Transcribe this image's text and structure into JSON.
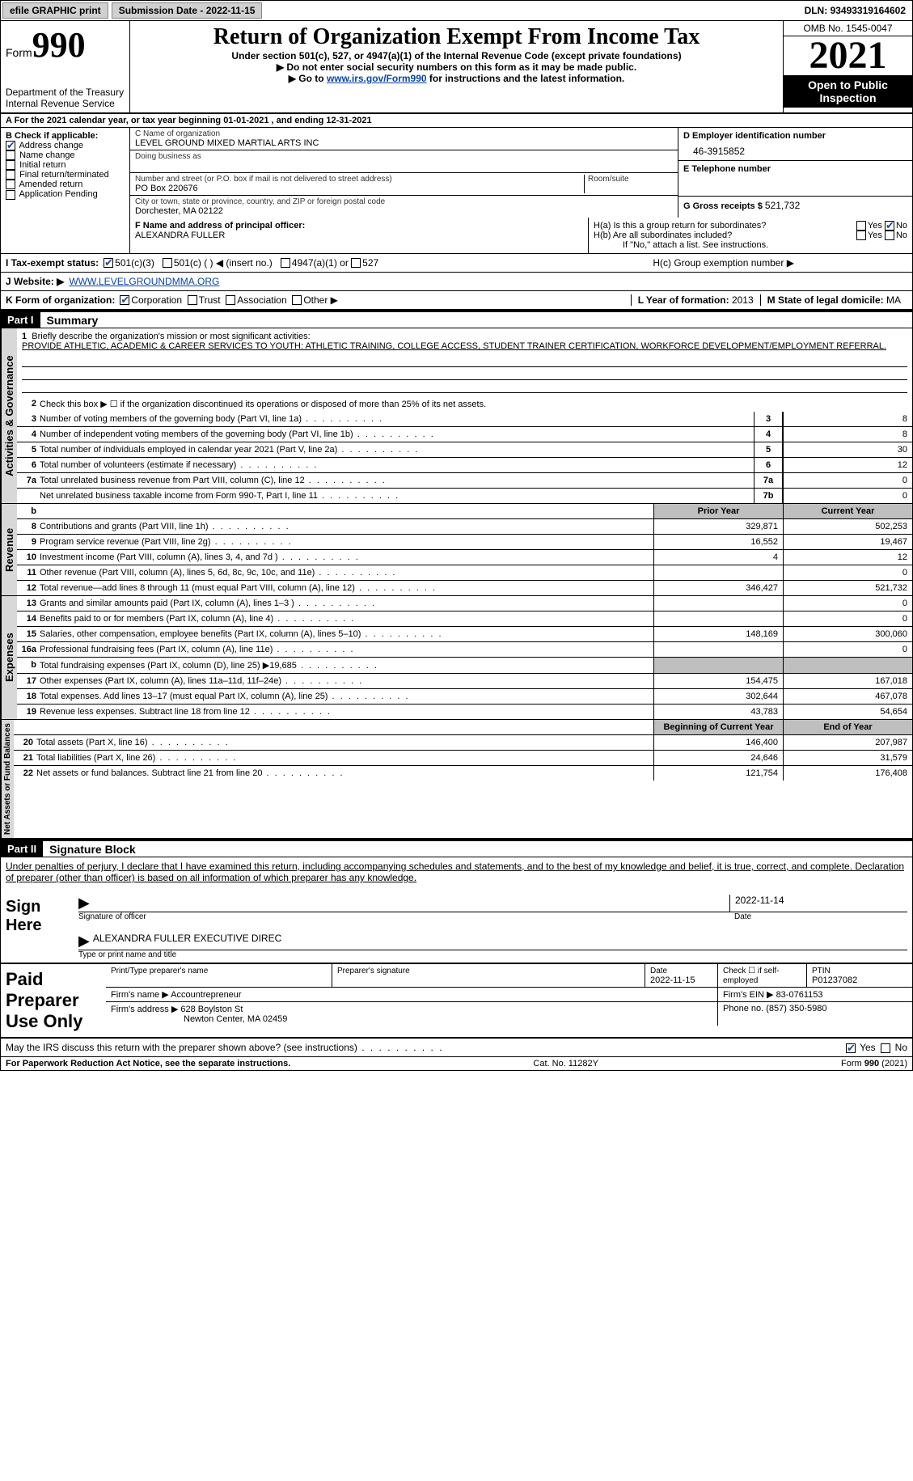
{
  "topbar": {
    "efile": "efile GRAPHIC print",
    "submission_label": "Submission Date - ",
    "submission_date": "2022-11-15",
    "dln_label": "DLN: ",
    "dln": "93493319164602"
  },
  "header": {
    "form_word": "Form",
    "form_no": "990",
    "dept": "Department of the Treasury Internal Revenue Service",
    "title": "Return of Organization Exempt From Income Tax",
    "sub1": "Under section 501(c), 527, or 4947(a)(1) of the Internal Revenue Code (except private foundations)",
    "sub2a": "▶ Do not enter social security numbers on this form as it may be made public.",
    "sub2b_pre": "▶ Go to ",
    "sub2b_link": "www.irs.gov/Form990",
    "sub2b_post": " for instructions and the latest information.",
    "omb": "OMB No. 1545-0047",
    "year": "2021",
    "open": "Open to Public Inspection"
  },
  "A": {
    "line": "A For the 2021 calendar year, or tax year beginning 01-01-2021   , and ending 12-31-2021"
  },
  "B": {
    "label": "B Check if applicable:",
    "items": [
      {
        "label": "Address change",
        "on": true
      },
      {
        "label": "Name change",
        "on": false
      },
      {
        "label": "Initial return",
        "on": false
      },
      {
        "label": "Final return/terminated",
        "on": false
      },
      {
        "label": "Amended return",
        "on": false
      },
      {
        "label": "Application Pending",
        "on": false
      }
    ]
  },
  "C": {
    "name_label": "C Name of organization",
    "name": "LEVEL GROUND MIXED MARTIAL ARTS INC",
    "dba_label": "Doing business as",
    "dba": "",
    "street_label": "Number and street (or P.O. box if mail is not delivered to street address)",
    "street": "PO Box 220676",
    "room_label": "Room/suite",
    "city_label": "City or town, state or province, country, and ZIP or foreign postal code",
    "city": "Dorchester, MA  02122"
  },
  "D": {
    "label": "D Employer identification number",
    "val": "46-3915852"
  },
  "E": {
    "label": "E Telephone number",
    "val": ""
  },
  "G": {
    "label": "G Gross receipts $ ",
    "val": "521,732"
  },
  "F": {
    "label": "F  Name and address of principal officer:",
    "val": "ALEXANDRA FULLER"
  },
  "H": {
    "a": "H(a)  Is this a group return for subordinates?",
    "b": "H(b)  Are all subordinates included?",
    "bnote": "If \"No,\" attach a list. See instructions.",
    "c": "H(c)  Group exemption number ▶",
    "yes": "Yes",
    "no": "No"
  },
  "I": {
    "label": "I   Tax-exempt status:",
    "opts": [
      "501(c)(3)",
      "501(c) (  ) ◀ (insert no.)",
      "4947(a)(1) or",
      "527"
    ]
  },
  "J": {
    "label": "J   Website: ▶ ",
    "val": "WWW.LEVELGROUNDMMA.ORG"
  },
  "K": {
    "label": "K Form of organization:",
    "opts": [
      "Corporation",
      "Trust",
      "Association",
      "Other ▶"
    ]
  },
  "L": {
    "label": "L Year of formation: ",
    "val": "2013"
  },
  "M": {
    "label": "M State of legal domicile: ",
    "val": "MA"
  },
  "part1": {
    "bar": "Part I",
    "title": "Summary"
  },
  "summary": {
    "l1_label": "Briefly describe the organization's mission or most significant activities:",
    "l1_text": "PROVIDE ATHLETIC, ACADEMIC & CAREER SERVICES TO YOUTH: ATHLETIC TRAINING, COLLEGE ACCESS, STUDENT TRAINER CERTIFICATION, WORKFORCE DEVELOPMENT/EMPLOYMENT REFERRAL.",
    "l2": "Check this box ▶ ☐  if the organization discontinued its operations or disposed of more than 25% of its net assets.",
    "rows_ag": [
      {
        "n": "3",
        "t": "Number of voting members of the governing body (Part VI, line 1a)",
        "b": "3",
        "v": "8"
      },
      {
        "n": "4",
        "t": "Number of independent voting members of the governing body (Part VI, line 1b)",
        "b": "4",
        "v": "8"
      },
      {
        "n": "5",
        "t": "Total number of individuals employed in calendar year 2021 (Part V, line 2a)",
        "b": "5",
        "v": "30"
      },
      {
        "n": "6",
        "t": "Total number of volunteers (estimate if necessary)",
        "b": "6",
        "v": "12"
      },
      {
        "n": "7a",
        "t": "Total unrelated business revenue from Part VIII, column (C), line 12",
        "b": "7a",
        "v": "0"
      },
      {
        "n": "",
        "t": "Net unrelated business taxable income from Form 990-T, Part I, line 11",
        "b": "7b",
        "v": "0"
      }
    ],
    "hdr_prior": "Prior Year",
    "hdr_curr": "Current Year",
    "rows_rev": [
      {
        "n": "8",
        "t": "Contributions and grants (Part VIII, line 1h)",
        "p": "329,871",
        "c": "502,253"
      },
      {
        "n": "9",
        "t": "Program service revenue (Part VIII, line 2g)",
        "p": "16,552",
        "c": "19,467"
      },
      {
        "n": "10",
        "t": "Investment income (Part VIII, column (A), lines 3, 4, and 7d )",
        "p": "4",
        "c": "12"
      },
      {
        "n": "11",
        "t": "Other revenue (Part VIII, column (A), lines 5, 6d, 8c, 9c, 10c, and 11e)",
        "p": "",
        "c": "0"
      },
      {
        "n": "12",
        "t": "Total revenue—add lines 8 through 11 (must equal Part VIII, column (A), line 12)",
        "p": "346,427",
        "c": "521,732"
      }
    ],
    "rows_exp": [
      {
        "n": "13",
        "t": "Grants and similar amounts paid (Part IX, column (A), lines 1–3 )",
        "p": "",
        "c": "0"
      },
      {
        "n": "14",
        "t": "Benefits paid to or for members (Part IX, column (A), line 4)",
        "p": "",
        "c": "0"
      },
      {
        "n": "15",
        "t": "Salaries, other compensation, employee benefits (Part IX, column (A), lines 5–10)",
        "p": "148,169",
        "c": "300,060"
      },
      {
        "n": "16a",
        "t": "Professional fundraising fees (Part IX, column (A), line 11e)",
        "p": "",
        "c": "0"
      },
      {
        "n": "b",
        "t": "Total fundraising expenses (Part IX, column (D), line 25) ▶19,685",
        "p": "SHADE",
        "c": "SHADE"
      },
      {
        "n": "17",
        "t": "Other expenses (Part IX, column (A), lines 11a–11d, 11f–24e)",
        "p": "154,475",
        "c": "167,018"
      },
      {
        "n": "18",
        "t": "Total expenses. Add lines 13–17 (must equal Part IX, column (A), line 25)",
        "p": "302,644",
        "c": "467,078"
      },
      {
        "n": "19",
        "t": "Revenue less expenses. Subtract line 18 from line 12",
        "p": "43,783",
        "c": "54,654"
      }
    ],
    "hdr_begin": "Beginning of Current Year",
    "hdr_end": "End of Year",
    "rows_na": [
      {
        "n": "20",
        "t": "Total assets (Part X, line 16)",
        "p": "146,400",
        "c": "207,987"
      },
      {
        "n": "21",
        "t": "Total liabilities (Part X, line 26)",
        "p": "24,646",
        "c": "31,579"
      },
      {
        "n": "22",
        "t": "Net assets or fund balances. Subtract line 21 from line 20",
        "p": "121,754",
        "c": "176,408"
      }
    ],
    "tab_ag": "Activities & Governance",
    "tab_rev": "Revenue",
    "tab_exp": "Expenses",
    "tab_na": "Net Assets or Fund Balances"
  },
  "part2": {
    "bar": "Part II",
    "title": "Signature Block"
  },
  "sig": {
    "decl": "Under penalties of perjury, I declare that I have examined this return, including accompanying schedules and statements, and to the best of my knowledge and belief, it is true, correct, and complete. Declaration of preparer (other than officer) is based on all information of which preparer has any knowledge.",
    "sign_here": "Sign Here",
    "sig_officer": "Signature of officer",
    "date": "Date",
    "date_val": "2022-11-14",
    "name_title": "ALEXANDRA FULLER  EXECUTIVE DIREC",
    "type_name": "Type or print name and title"
  },
  "prep": {
    "label": "Paid Preparer Use Only",
    "r1": {
      "a": "Print/Type preparer's name",
      "b": "Preparer's signature",
      "c": "Date",
      "cval": "2022-11-15",
      "d": "Check ☐ if self-employed",
      "e": "PTIN",
      "eval": "P01237082"
    },
    "r2": {
      "a": "Firm's name    ▶",
      "aval": "Accountrepreneur",
      "b": "Firm's EIN ▶",
      "bval": "83-0761153"
    },
    "r3": {
      "a": "Firm's address ▶",
      "aval": "628 Boylston St",
      "aval2": "Newton Center, MA  02459",
      "b": "Phone no.",
      "bval": "(857) 350-5980"
    }
  },
  "foot": {
    "q": "May the IRS discuss this return with the preparer shown above? (see instructions)",
    "yes": "Yes",
    "no": "No",
    "pra": "For Paperwork Reduction Act Notice, see the separate instructions.",
    "cat": "Cat. No. 11282Y",
    "form": "Form 990 (2021)"
  }
}
